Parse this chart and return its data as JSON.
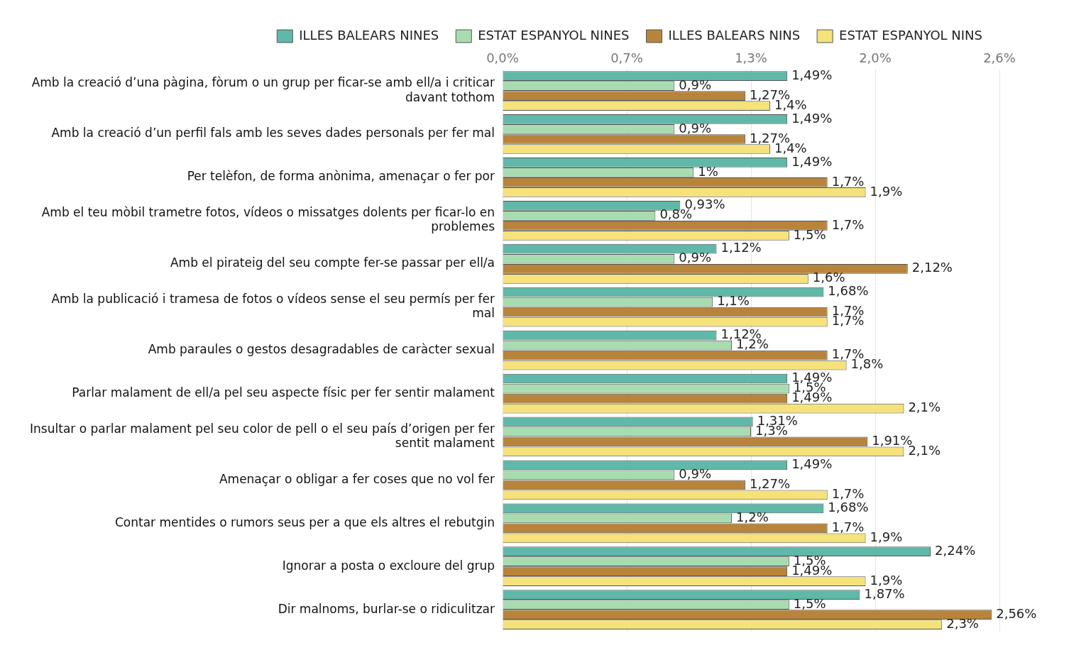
{
  "chart_data": {
    "type": "bar",
    "orientation": "horizontal",
    "legend": "top",
    "grid": "x",
    "categories": [
      "Amb la creació d’una pàgina, fòrum o un grup per ficar-se amb ell/a i criticar davant tothom",
      "Amb la creació d’un perfil fals amb les seves dades personals per fer mal",
      "Per telèfon, de forma anònima, amenaçar o fer por",
      "Amb el teu mòbil trametre fotos, vídeos o missatges dolents per ficar-lo en problemes",
      "Amb el pirateig del seu compte fer-se passar per ell/a",
      "Amb la publicació i tramesa de fotos o vídeos sense el seu permís per fer mal",
      "Amb paraules o gestos desagradables de caràcter sexual",
      "Parlar malament de ell/a pel seu aspecte físic per fer sentir malament",
      "Insultar o parlar malament pel seu color de pell o el seu país d’origen per fer sentit malament",
      "Amenaçar o obligar a fer coses que no vol fer",
      "Contar mentides o rumors seus per a que els altres el rebutgin",
      "Ignorar a posta o excloure del grup",
      "Dir malnoms, burlar-se o ridiculitzar"
    ],
    "series": [
      {
        "name": "ILLES BALEARS NINES",
        "color": "#5fb8a8",
        "values": [
          1.49,
          1.49,
          1.49,
          0.93,
          1.12,
          1.68,
          1.12,
          1.49,
          1.31,
          1.49,
          1.68,
          2.24,
          1.87
        ],
        "value_labels": [
          "1,49%",
          "1,49%",
          "1,49%",
          "0,93%",
          "1,12%",
          "1,68%",
          "1,12%",
          "1,49%",
          "1,31%",
          "1,49%",
          "1,68%",
          "2,24%",
          "1,87%"
        ]
      },
      {
        "name": "ESTAT ESPANYOL NINES",
        "color": "#a8dcb0",
        "values": [
          0.9,
          0.9,
          1,
          0.8,
          0.9,
          1.1,
          1.2,
          1.5,
          1.3,
          0.9,
          1.2,
          1.5,
          1.5
        ],
        "value_labels": [
          "0,9%",
          "0,9%",
          "1%",
          "0,8%",
          "0,9%",
          "1,1%",
          "1,2%",
          "1,5%",
          "1,3%",
          "0,9%",
          "1,2%",
          "1,5%",
          "1,5%"
        ]
      },
      {
        "name": "ILLES BALEARS NINS",
        "color": "#b8843c",
        "values": [
          1.27,
          1.27,
          1.7,
          1.7,
          2.12,
          1.7,
          1.7,
          1.49,
          1.91,
          1.27,
          1.7,
          1.49,
          2.56
        ],
        "value_labels": [
          "1,27%",
          "1,27%",
          "1,7%",
          "1,7%",
          "2,12%",
          "1,7%",
          "1,7%",
          "1,49%",
          "1,91%",
          "1,27%",
          "1,7%",
          "1,49%",
          "2,56%"
        ]
      },
      {
        "name": "ESTAT ESPANYOL NINS",
        "color": "#f5e27a",
        "values": [
          1.4,
          1.4,
          1.9,
          1.5,
          1.6,
          1.7,
          1.8,
          2.1,
          2.1,
          1.7,
          1.9,
          1.9,
          2.3
        ],
        "value_labels": [
          "1,4%",
          "1,4%",
          "1,9%",
          "1,5%",
          "1,6%",
          "1,7%",
          "1,8%",
          "2,1%",
          "2,1%",
          "1,7%",
          "1,9%",
          "1,9%",
          "2,3%"
        ]
      }
    ],
    "xlim": [
      0,
      2.6
    ],
    "xticks": [
      {
        "value": 0,
        "label": "0,0%"
      },
      {
        "value": 0.65,
        "label": "0,7%"
      },
      {
        "value": 1.3,
        "label": "1,3%"
      },
      {
        "value": 1.95,
        "label": "2,0%"
      },
      {
        "value": 2.6,
        "label": "2,6%"
      }
    ]
  }
}
